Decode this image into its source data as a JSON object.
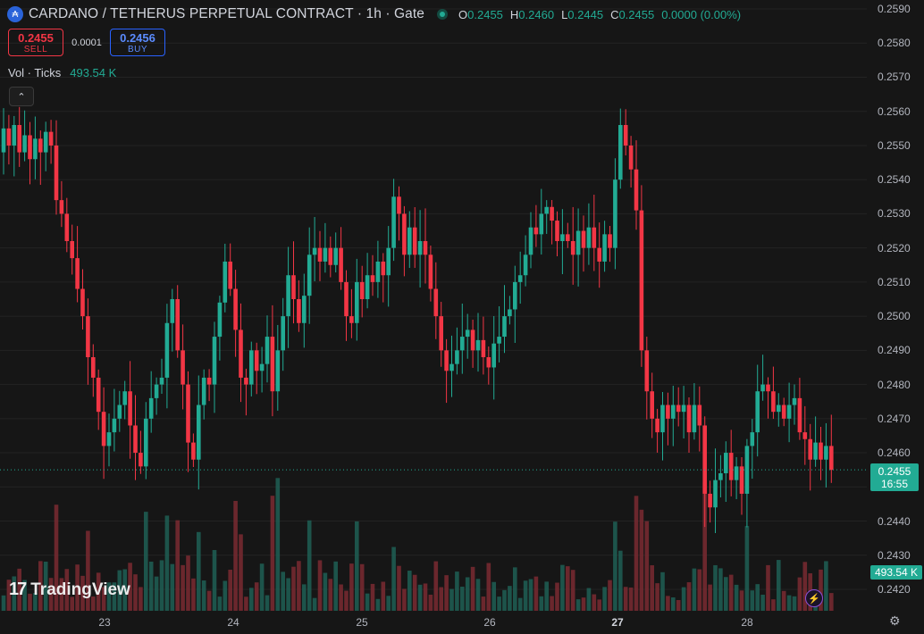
{
  "header": {
    "title": "CARDANO / TETHERUS PERPETUAL CONTRACT · 1h · Gate",
    "logo_icon": "cardano-coin-icon",
    "ohlc": [
      {
        "k": "O",
        "v": "0.2455"
      },
      {
        "k": "H",
        "v": "0.2460"
      },
      {
        "k": "L",
        "v": "0.2445"
      },
      {
        "k": "C",
        "v": "0.2455"
      },
      {
        "k": "",
        "v": "0.0000 (0.00%)"
      }
    ]
  },
  "trade": {
    "sell_price": "0.2455",
    "sell_label": "SELL",
    "spread": "0.0001",
    "buy_price": "0.2456",
    "buy_label": "BUY"
  },
  "volume_legend": {
    "label": "Vol · Ticks",
    "value": "493.54 K"
  },
  "branding": {
    "text": "TradingView"
  },
  "axis": {
    "y_ticks": [
      "0.2590",
      "0.2580",
      "0.2570",
      "0.2560",
      "0.2550",
      "0.2540",
      "0.2530",
      "0.2520",
      "0.2510",
      "0.2500",
      "0.2490",
      "0.2480",
      "0.2470",
      "0.2460",
      "0.2450",
      "0.2440",
      "0.2430",
      "0.2420"
    ],
    "x_ticks": [
      "23",
      "24",
      "25",
      "26",
      "27",
      "28"
    ],
    "current_price": "0.2455",
    "countdown": "16:55",
    "volume_value": "493.54 K"
  },
  "colors": {
    "up": "#22ab94",
    "down": "#f23645",
    "background": "#161616"
  },
  "chart_data": {
    "type": "candlestick",
    "title": "CARDANO / TETHERUS PERPETUAL CONTRACT · 1h · Gate",
    "ylim": [
      0.2415,
      0.2595
    ],
    "x_ticks": [
      "23",
      "24",
      "25",
      "26",
      "27",
      "28"
    ],
    "last_price": 0.2455,
    "close": [
      0.2555,
      0.255,
      0.2556,
      0.2548,
      0.2553,
      0.2546,
      0.2552,
      0.2548,
      0.2554,
      0.255,
      0.2534,
      0.253,
      0.2522,
      0.2517,
      0.2508,
      0.25,
      0.2488,
      0.2482,
      0.2472,
      0.2462,
      0.2466,
      0.247,
      0.2474,
      0.2478,
      0.2468,
      0.246,
      0.2456,
      0.247,
      0.2476,
      0.248,
      0.2482,
      0.2498,
      0.2505,
      0.249,
      0.248,
      0.2463,
      0.2458,
      0.2474,
      0.2482,
      0.248,
      0.2494,
      0.2504,
      0.2516,
      0.2508,
      0.2496,
      0.2482,
      0.248,
      0.249,
      0.2484,
      0.2486,
      0.2494,
      0.2478,
      0.249,
      0.25,
      0.2512,
      0.2505,
      0.2498,
      0.2506,
      0.2518,
      0.252,
      0.2516,
      0.252,
      0.2515,
      0.252,
      0.251,
      0.25,
      0.2498,
      0.251,
      0.2505,
      0.2512,
      0.251,
      0.2516,
      0.2512,
      0.252,
      0.2535,
      0.253,
      0.2518,
      0.2526,
      0.2518,
      0.2522,
      0.2518,
      0.2508,
      0.25,
      0.249,
      0.2484,
      0.2486,
      0.249,
      0.2494,
      0.2496,
      0.249,
      0.2493,
      0.2488,
      0.2485,
      0.2492,
      0.2494,
      0.25,
      0.2502,
      0.251,
      0.2512,
      0.2518,
      0.2526,
      0.2524,
      0.253,
      0.2532,
      0.2528,
      0.2522,
      0.2524,
      0.2522,
      0.2518,
      0.2525,
      0.252,
      0.2526,
      0.252,
      0.2516,
      0.2524,
      0.252,
      0.254,
      0.2556,
      0.255,
      0.2543,
      0.2531,
      0.249,
      0.2478,
      0.247,
      0.2466,
      0.2474,
      0.247,
      0.2474,
      0.2472,
      0.2474,
      0.2466,
      0.2474,
      0.2468,
      0.2448,
      0.2444,
      0.2452,
      0.2454,
      0.246,
      0.2452,
      0.2456,
      0.2448,
      0.2462,
      0.2466,
      0.2478,
      0.248,
      0.2478,
      0.2472,
      0.2474,
      0.247,
      0.2474,
      0.2476,
      0.2466,
      0.2464,
      0.2458,
      0.2463,
      0.2458,
      0.2462,
      0.2455
    ]
  }
}
